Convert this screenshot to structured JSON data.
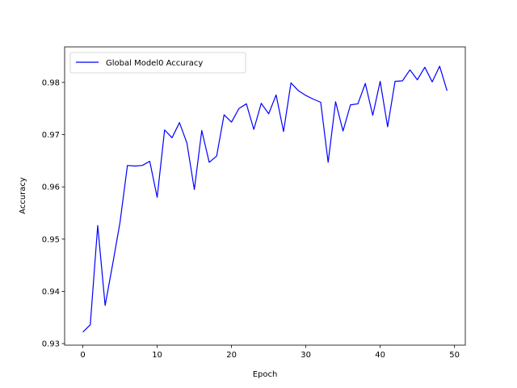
{
  "chart_data": {
    "type": "line",
    "title": "",
    "xlabel": "Epoch",
    "ylabel": "Accuracy",
    "xlim": [
      -2.45,
      51.45
    ],
    "ylim": [
      0.9297,
      0.9868
    ],
    "xticks": [
      0,
      10,
      20,
      30,
      40,
      50
    ],
    "yticks": [
      0.93,
      0.94,
      0.95,
      0.96,
      0.97,
      0.98
    ],
    "grid": false,
    "legend_position": "upper-left",
    "series": [
      {
        "name": "Global Model0 Accuracy",
        "color": "#0000ff",
        "x": [
          0,
          1,
          2,
          3,
          4,
          5,
          6,
          7,
          8,
          9,
          10,
          11,
          12,
          13,
          14,
          15,
          16,
          17,
          18,
          19,
          20,
          21,
          22,
          23,
          24,
          25,
          26,
          27,
          28,
          29,
          30,
          31,
          32,
          33,
          34,
          35,
          36,
          37,
          38,
          39,
          40,
          41,
          42,
          43,
          44,
          45,
          46,
          47,
          48,
          49
        ],
        "values": [
          0.9322,
          0.9336,
          0.9526,
          0.9373,
          0.9451,
          0.9532,
          0.9641,
          0.964,
          0.9641,
          0.9649,
          0.958,
          0.9709,
          0.9694,
          0.9723,
          0.9684,
          0.9595,
          0.9708,
          0.9647,
          0.9659,
          0.9738,
          0.9724,
          0.975,
          0.9759,
          0.971,
          0.976,
          0.974,
          0.9776,
          0.9706,
          0.9799,
          0.9784,
          0.9775,
          0.9768,
          0.9762,
          0.9647,
          0.9763,
          0.9707,
          0.9757,
          0.9759,
          0.9798,
          0.9737,
          0.9802,
          0.9715,
          0.9802,
          0.9803,
          0.9824,
          0.9805,
          0.9829,
          0.9801,
          0.9831,
          0.9784
        ]
      }
    ]
  }
}
